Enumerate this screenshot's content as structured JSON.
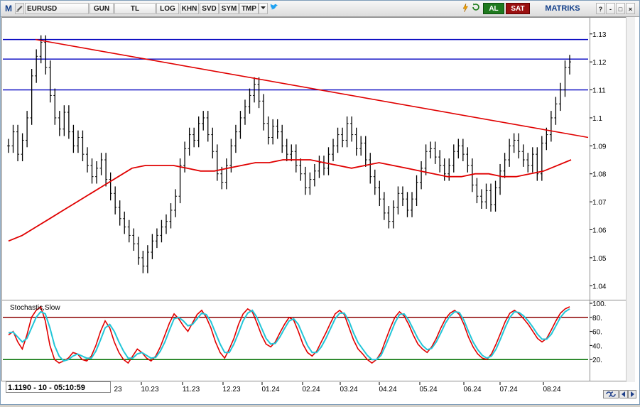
{
  "toolbar": {
    "logo": "M",
    "symbol": "EURUSD",
    "buttons": [
      "GUN",
      "TL",
      "LOG",
      "KHN",
      "SVD",
      "SYM",
      "TMP"
    ],
    "buy_label": "AL",
    "sell_label": "SAT",
    "brand": "MATRIKS",
    "window_controls": [
      "?",
      "-",
      "□",
      "×"
    ]
  },
  "colors": {
    "price_bars": "#000000",
    "moving_average": "#e00000",
    "trend_line": "#e00000",
    "horizontal_lines": "#0000c0",
    "stoch_k": "#e00000",
    "stoch_d": "#22c6d8",
    "stoch_upper": "#8b0000",
    "stoch_lower": "#007000"
  },
  "status": {
    "readout": "1.1190 - 10 - 05:10:59"
  },
  "chart_data": [
    {
      "type": "line",
      "title": "",
      "xlabel": "",
      "ylabel": "",
      "x_ticks": [
        "23",
        "10.23",
        "11.23",
        "12.23",
        "01.24",
        "02.24",
        "03.24",
        "04.24",
        "05.24",
        "06.24",
        "07.24",
        "08.24"
      ],
      "y_ticks": [
        "1.04",
        "1.05",
        "1.06",
        "1.07",
        "1.08",
        "1.09",
        "1.1",
        "1.11",
        "1.12",
        "1.13"
      ],
      "ylim": [
        1.035,
        1.134
      ],
      "series": [
        {
          "values": [
            1.09,
            1.095,
            1.087,
            1.092,
            1.1,
            1.115,
            1.122,
            1.127,
            1.118,
            1.108,
            1.1,
            1.096,
            1.102,
            1.095,
            1.09,
            1.093,
            1.087,
            1.083,
            1.079,
            1.082,
            1.085,
            1.078,
            1.073,
            1.068,
            1.064,
            1.061,
            1.058,
            1.055,
            1.05,
            1.047,
            1.052,
            1.056,
            1.058,
            1.061,
            1.063,
            1.067,
            1.072,
            1.083,
            1.089,
            1.094,
            1.092,
            1.098,
            1.1,
            1.094,
            1.088,
            1.08,
            1.077,
            1.083,
            1.09,
            1.095,
            1.1,
            1.104,
            1.108,
            1.112,
            1.106,
            1.098,
            1.093,
            1.097,
            1.095,
            1.09,
            1.087,
            1.088,
            1.083,
            1.08,
            1.075,
            1.078,
            1.081,
            1.084,
            1.082,
            1.087,
            1.09,
            1.094,
            1.092,
            1.098,
            1.094,
            1.089,
            1.091,
            1.085,
            1.079,
            1.075,
            1.071,
            1.066,
            1.063,
            1.068,
            1.073,
            1.071,
            1.067,
            1.071,
            1.077,
            1.082,
            1.088,
            1.089,
            1.086,
            1.083,
            1.08,
            1.083,
            1.088,
            1.09,
            1.087,
            1.083,
            1.076,
            1.072,
            1.07,
            1.074,
            1.069,
            1.075,
            1.081,
            1.085,
            1.09,
            1.092,
            1.088,
            1.085,
            1.083,
            1.087,
            1.08,
            1.091,
            1.094,
            1.1,
            1.105,
            1.11,
            1.118,
            1.12
          ],
          "name": ""
        },
        {
          "values": [
            1.056,
            1.058,
            1.061,
            1.064,
            1.067,
            1.07,
            1.073,
            1.076,
            1.079,
            1.082,
            1.083,
            1.083,
            1.083,
            1.082,
            1.081,
            1.081,
            1.082,
            1.083,
            1.084,
            1.084,
            1.085,
            1.085,
            1.085,
            1.084,
            1.083,
            1.082,
            1.083,
            1.084,
            1.083,
            1.082,
            1.081,
            1.08,
            1.079,
            1.079,
            1.08,
            1.08,
            1.079,
            1.079,
            1.08,
            1.081,
            1.083,
            1.085
          ],
          "name": ""
        }
      ],
      "horizontal_lines": [
        1.128,
        1.121,
        1.11
      ],
      "trend_line": {
        "start": 1.128,
        "end": 1.093
      }
    },
    {
      "type": "line",
      "title": "Stochastic,Slow",
      "y_ticks": [
        "20.",
        "40.",
        "60.",
        "80.",
        "100."
      ],
      "ylim": [
        0,
        100
      ],
      "levels": [
        80,
        20
      ],
      "series": [
        {
          "name": "",
          "values": [
            55,
            60,
            45,
            35,
            55,
            80,
            90,
            95,
            75,
            40,
            20,
            15,
            18,
            22,
            30,
            28,
            20,
            18,
            25,
            40,
            60,
            75,
            65,
            45,
            30,
            20,
            15,
            25,
            35,
            30,
            22,
            18,
            25,
            38,
            55,
            72,
            85,
            78,
            68,
            60,
            72,
            84,
            90,
            80,
            65,
            45,
            30,
            22,
            35,
            50,
            70,
            85,
            92,
            88,
            72,
            55,
            42,
            38,
            45,
            58,
            70,
            80,
            76,
            60,
            42,
            30,
            25,
            32,
            45,
            58,
            72,
            85,
            90,
            84,
            66,
            48,
            35,
            28,
            20,
            15,
            20,
            30,
            48,
            65,
            80,
            88,
            82,
            70,
            55,
            42,
            35,
            30,
            38,
            50,
            65,
            78,
            86,
            90,
            84,
            70,
            52,
            38,
            28,
            22,
            20,
            28,
            42,
            58,
            74,
            86,
            90,
            85,
            78,
            70,
            60,
            50,
            45,
            50,
            62,
            75,
            86,
            92,
            95
          ]
        },
        {
          "name": "",
          "values": [
            58,
            59,
            52,
            45,
            50,
            65,
            80,
            88,
            85,
            65,
            40,
            25,
            18,
            20,
            25,
            28,
            25,
            22,
            22,
            32,
            48,
            65,
            70,
            60,
            45,
            32,
            22,
            22,
            28,
            30,
            26,
            22,
            23,
            32,
            45,
            62,
            78,
            80,
            75,
            68,
            70,
            78,
            86,
            84,
            74,
            58,
            42,
            30,
            30,
            42,
            58,
            75,
            86,
            90,
            80,
            65,
            50,
            42,
            43,
            52,
            64,
            75,
            78,
            70,
            55,
            40,
            30,
            30,
            38,
            50,
            64,
            78,
            86,
            86,
            75,
            58,
            44,
            35,
            26,
            20,
            20,
            26,
            40,
            56,
            72,
            84,
            85,
            76,
            63,
            50,
            40,
            34,
            36,
            45,
            58,
            72,
            82,
            88,
            87,
            76,
            60,
            45,
            34,
            26,
            22,
            25,
            35,
            50,
            66,
            80,
            88,
            87,
            82,
            75,
            66,
            56,
            49,
            49,
            56,
            68,
            80,
            88,
            92
          ]
        }
      ]
    }
  ]
}
